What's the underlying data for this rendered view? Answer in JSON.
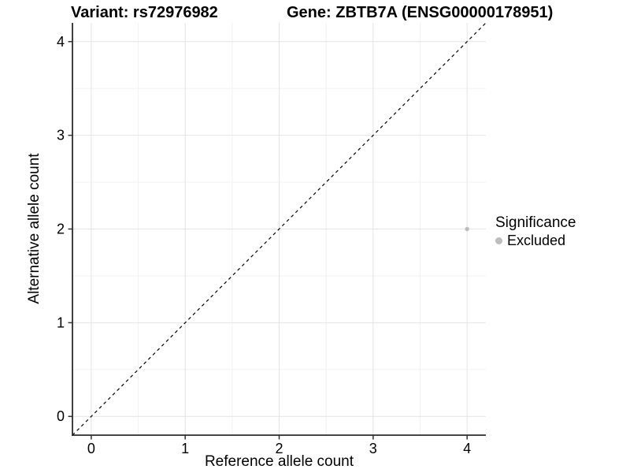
{
  "titles": {
    "variant": "Variant: rs72976982",
    "gene": "Gene: ZBTB7A (ENSG00000178951)"
  },
  "chart_data": {
    "type": "scatter",
    "title_left": "Variant: rs72976982",
    "title_right": "Gene: ZBTB7A (ENSG00000178951)",
    "xlabel": "Reference allele count",
    "ylabel": "Alternative allele count",
    "xlim": [
      -0.2,
      4.2
    ],
    "ylim": [
      -0.2,
      4.2
    ],
    "x_ticks": [
      0,
      1,
      2,
      3,
      4
    ],
    "y_ticks": [
      0,
      1,
      2,
      3,
      4
    ],
    "x_minor_breaks": [
      0.5,
      1.5,
      2.5,
      3.5
    ],
    "y_minor_breaks": [
      0.5,
      1.5,
      2.5,
      3.5
    ],
    "grid": true,
    "identity_line": {
      "style": "dashed",
      "color": "#000000",
      "from": [
        -0.2,
        -0.2
      ],
      "to": [
        4.2,
        4.2
      ]
    },
    "series": [
      {
        "name": "Excluded",
        "color": "#bdbdbd",
        "point_radius": 2.7,
        "points": [
          {
            "x": 4,
            "y": 2
          }
        ]
      }
    ],
    "legend": {
      "title": "Significance",
      "position": "right",
      "items": [
        {
          "label": "Excluded",
          "color": "#bdbdbd"
        }
      ]
    }
  },
  "colors": {
    "background": "#ffffff",
    "grid_major": "#e4e4e4",
    "grid_minor": "#f2f2f2",
    "axis_line": "#2b2b2b",
    "tick_mark": "#333333",
    "point": "#bdbdbd"
  }
}
